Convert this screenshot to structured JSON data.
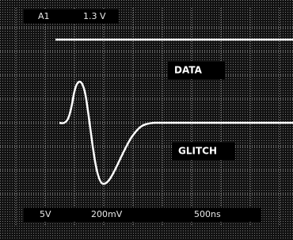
{
  "header": {
    "channel": "A1",
    "level": "1.3 V"
  },
  "labels": {
    "data": "DATA",
    "glitch": "GLITCH"
  },
  "footer": {
    "channel_scale": "5V",
    "volts_per_div": "200mV",
    "time_per_div": "500ns"
  }
}
